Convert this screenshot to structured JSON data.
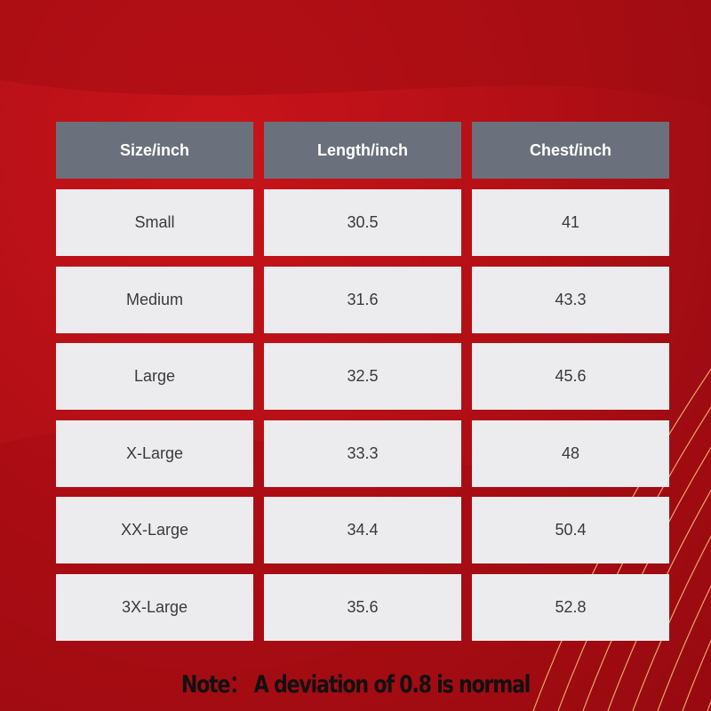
{
  "table": {
    "headers": [
      "Size/inch",
      "Length/inch",
      "Chest/inch"
    ],
    "rows": [
      [
        "Small",
        "30.5",
        "41"
      ],
      [
        "Medium",
        "31.6",
        "43.3"
      ],
      [
        "Large",
        "32.5",
        "45.6"
      ],
      [
        "X-Large",
        "33.3",
        "48"
      ],
      [
        "XX-Large",
        "34.4",
        "50.4"
      ],
      [
        "3X-Large",
        "35.6",
        "52.8"
      ]
    ]
  },
  "note": "Note： A deviation of 0.8 is normal",
  "colors": {
    "background": "#b40f16",
    "header": "#6a717c",
    "cell": "#ececee",
    "accent_lines": "#f0c070"
  }
}
